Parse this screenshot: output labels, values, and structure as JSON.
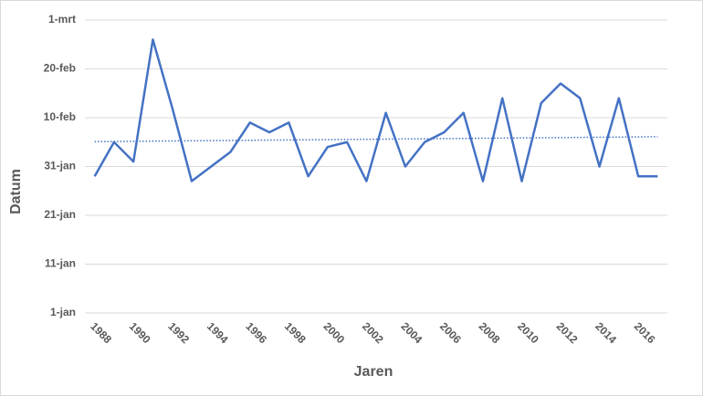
{
  "chart_data": {
    "type": "line",
    "x_label": "Jaren",
    "y_label": "Datum",
    "categories": [
      "1988",
      null,
      "1990",
      null,
      "1992",
      null,
      "1994",
      null,
      "1996",
      null,
      "1998",
      null,
      "2000",
      null,
      "2002",
      null,
      "2004",
      null,
      "2006",
      null,
      "2008",
      null,
      "2010",
      null,
      "2012",
      null,
      "2014",
      null,
      "2016",
      null
    ],
    "values": [
      29,
      36,
      32,
      57,
      43,
      28,
      31,
      34,
      40,
      38,
      40,
      29,
      35,
      36,
      28,
      42,
      31,
      36,
      38,
      42,
      28,
      45,
      28,
      44,
      48,
      45,
      31,
      45,
      29,
      29
    ],
    "trendline": [
      36.1,
      37.1
    ],
    "color": "#4472c4",
    "ylim": [
      1,
      61
    ],
    "yticks": [
      {
        "value": 1,
        "label": "1-jan"
      },
      {
        "value": 11,
        "label": "11-jan"
      },
      {
        "value": 21,
        "label": "21-jan"
      },
      {
        "value": 31,
        "label": "31-jan"
      },
      {
        "value": 41,
        "label": "10-feb"
      },
      {
        "value": 51,
        "label": "20-feb"
      },
      {
        "value": 61,
        "label": "1-mrt"
      }
    ],
    "grid": true
  }
}
